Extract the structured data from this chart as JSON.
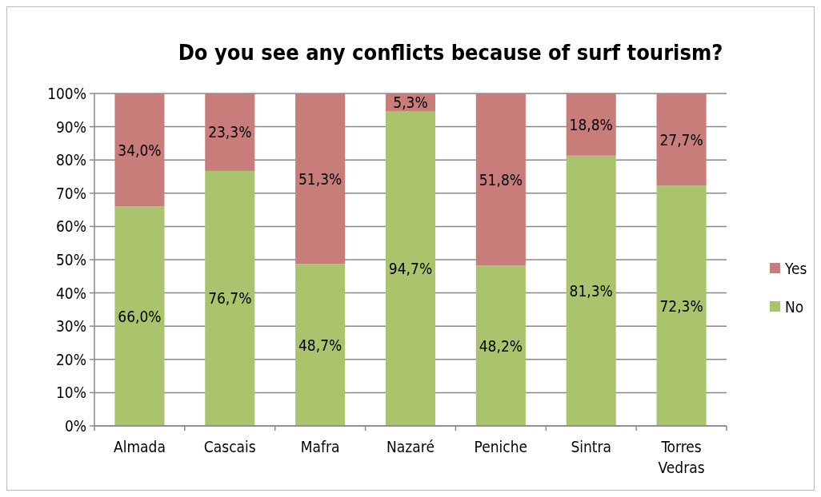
{
  "chart_data": {
    "type": "bar",
    "stacked": true,
    "title": "Do you see any conflicts because of surf tourism?",
    "categories": [
      "Almada",
      "Cascais",
      "Mafra",
      "Nazaré",
      "Peniche",
      "Sintra",
      "Torres Vedras"
    ],
    "series": [
      {
        "name": "No",
        "color": "#a9c46c",
        "values": [
          66.0,
          76.7,
          48.7,
          94.7,
          48.2,
          81.3,
          72.3
        ],
        "value_labels": [
          "66,0%",
          "76,7%",
          "48,7%",
          "94,7%",
          "48,2%",
          "81,3%",
          "72,3%"
        ]
      },
      {
        "name": "Yes",
        "color": "#c97d7b",
        "values": [
          34.0,
          23.3,
          51.3,
          5.3,
          51.8,
          18.8,
          27.7
        ],
        "value_labels": [
          "34,0%",
          "23,3%",
          "51,3%",
          "5,3%",
          "51,8%",
          "18,8%",
          "27,7%"
        ]
      }
    ],
    "ylim": [
      0,
      100
    ],
    "yticks": [
      {
        "value": 0,
        "label": "0%"
      },
      {
        "value": 10,
        "label": "10%"
      },
      {
        "value": 20,
        "label": "20%"
      },
      {
        "value": 30,
        "label": "30%"
      },
      {
        "value": 40,
        "label": "40%"
      },
      {
        "value": 50,
        "label": "50%"
      },
      {
        "value": 60,
        "label": "60%"
      },
      {
        "value": 70,
        "label": "70%"
      },
      {
        "value": 80,
        "label": "80%"
      },
      {
        "value": 90,
        "label": "90%"
      },
      {
        "value": 100,
        "label": "100%"
      }
    ],
    "grid": "y",
    "legend": "right"
  }
}
